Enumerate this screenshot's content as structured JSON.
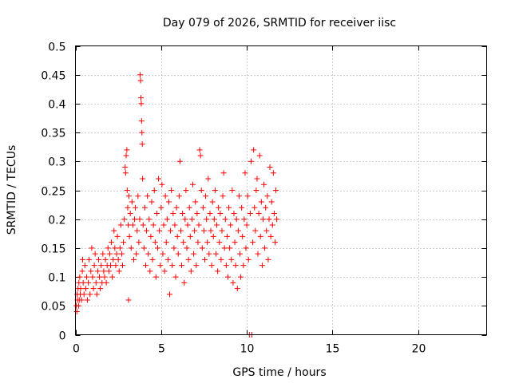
{
  "chart_data": {
    "type": "scatter",
    "title": "Day 079 of 2026, SRMTID for receiver iisc",
    "xlabel": "GPS time / hours",
    "ylabel": "SRMTID / TECUs",
    "xlim": [
      0,
      24
    ],
    "ylim": [
      0,
      0.5
    ],
    "xticks": [
      0,
      5,
      10,
      15,
      20
    ],
    "xtick_labels": [
      "0",
      "5",
      "10",
      "15",
      "20"
    ],
    "yticks": [
      0,
      0.05,
      0.1,
      0.15,
      0.2,
      0.25,
      0.3,
      0.35,
      0.4,
      0.45,
      0.5
    ],
    "ytick_labels": [
      "0",
      "0.05",
      "0.1",
      "0.15",
      "0.2",
      "0.25",
      "0.3",
      "0.35",
      "0.4",
      "0.45",
      "0.5"
    ],
    "grid": true,
    "marker": "plus",
    "series": [
      {
        "name": "SRMTID",
        "color": "#ff0000",
        "points": [
          [
            0.05,
            0.05
          ],
          [
            0.08,
            0.04
          ],
          [
            0.1,
            0.07
          ],
          [
            0.12,
            0.06
          ],
          [
            0.15,
            0.08
          ],
          [
            0.18,
            0.05
          ],
          [
            0.2,
            0.09
          ],
          [
            0.22,
            0.06
          ],
          [
            0.25,
            0.1
          ],
          [
            0.28,
            0.07
          ],
          [
            0.3,
            0.08
          ],
          [
            0.35,
            0.06
          ],
          [
            0.4,
            0.11
          ],
          [
            0.42,
            0.13
          ],
          [
            0.45,
            0.09
          ],
          [
            0.5,
            0.07
          ],
          [
            0.55,
            0.12
          ],
          [
            0.6,
            0.08
          ],
          [
            0.65,
            0.1
          ],
          [
            0.7,
            0.06
          ],
          [
            0.75,
            0.09
          ],
          [
            0.8,
            0.13
          ],
          [
            0.85,
            0.07
          ],
          [
            0.9,
            0.11
          ],
          [
            0.95,
            0.15
          ],
          [
            1.0,
            0.1
          ],
          [
            1.05,
            0.08
          ],
          [
            1.1,
            0.12
          ],
          [
            1.15,
            0.14
          ],
          [
            1.2,
            0.09
          ],
          [
            1.25,
            0.07
          ],
          [
            1.3,
            0.11
          ],
          [
            1.35,
            0.13
          ],
          [
            1.4,
            0.1
          ],
          [
            1.45,
            0.08
          ],
          [
            1.5,
            0.12
          ],
          [
            1.55,
            0.09
          ],
          [
            1.6,
            0.14
          ],
          [
            1.65,
            0.11
          ],
          [
            1.7,
            0.1
          ],
          [
            1.75,
            0.13
          ],
          [
            1.8,
            0.09
          ],
          [
            1.85,
            0.12
          ],
          [
            1.9,
            0.15
          ],
          [
            1.95,
            0.11
          ],
          [
            2.0,
            0.14
          ],
          [
            2.05,
            0.12
          ],
          [
            2.1,
            0.16
          ],
          [
            2.15,
            0.1
          ],
          [
            2.2,
            0.13
          ],
          [
            2.25,
            0.18
          ],
          [
            2.3,
            0.15
          ],
          [
            2.35,
            0.12
          ],
          [
            2.4,
            0.14
          ],
          [
            2.45,
            0.17
          ],
          [
            2.5,
            0.13
          ],
          [
            2.55,
            0.11
          ],
          [
            2.6,
            0.15
          ],
          [
            2.65,
            0.19
          ],
          [
            2.7,
            0.14
          ],
          [
            2.75,
            0.12
          ],
          [
            2.8,
            0.16
          ],
          [
            2.85,
            0.2
          ],
          [
            2.9,
            0.29
          ],
          [
            2.93,
            0.28
          ],
          [
            2.96,
            0.31
          ],
          [
            3.0,
            0.32
          ],
          [
            3.02,
            0.25
          ],
          [
            3.05,
            0.22
          ],
          [
            3.08,
            0.19
          ],
          [
            3.1,
            0.06
          ],
          [
            3.12,
            0.24
          ],
          [
            3.15,
            0.17
          ],
          [
            3.2,
            0.21
          ],
          [
            3.25,
            0.15
          ],
          [
            3.3,
            0.23
          ],
          [
            3.35,
            0.19
          ],
          [
            3.4,
            0.13
          ],
          [
            3.45,
            0.2
          ],
          [
            3.5,
            0.22
          ],
          [
            3.55,
            0.14
          ],
          [
            3.6,
            0.18
          ],
          [
            3.65,
            0.24
          ],
          [
            3.7,
            0.16
          ],
          [
            3.75,
            0.2
          ],
          [
            3.78,
            0.45
          ],
          [
            3.8,
            0.44
          ],
          [
            3.82,
            0.41
          ],
          [
            3.84,
            0.4
          ],
          [
            3.86,
            0.37
          ],
          [
            3.88,
            0.35
          ],
          [
            3.9,
            0.33
          ],
          [
            3.92,
            0.27
          ],
          [
            3.95,
            0.19
          ],
          [
            4.0,
            0.15
          ],
          [
            4.05,
            0.22
          ],
          [
            4.1,
            0.12
          ],
          [
            4.15,
            0.18
          ],
          [
            4.2,
            0.24
          ],
          [
            4.25,
            0.14
          ],
          [
            4.3,
            0.2
          ],
          [
            4.35,
            0.11
          ],
          [
            4.4,
            0.17
          ],
          [
            4.45,
            0.23
          ],
          [
            4.5,
            0.13
          ],
          [
            4.55,
            0.19
          ],
          [
            4.6,
            0.25
          ],
          [
            4.65,
            0.16
          ],
          [
            4.7,
            0.1
          ],
          [
            4.75,
            0.21
          ],
          [
            4.8,
            0.15
          ],
          [
            4.85,
            0.27
          ],
          [
            4.9,
            0.18
          ],
          [
            4.95,
            0.12
          ],
          [
            5.0,
            0.22
          ],
          [
            5.05,
            0.26
          ],
          [
            5.1,
            0.14
          ],
          [
            5.15,
            0.19
          ],
          [
            5.2,
            0.11
          ],
          [
            5.25,
            0.24
          ],
          [
            5.3,
            0.16
          ],
          [
            5.35,
            0.2
          ],
          [
            5.4,
            0.13
          ],
          [
            5.45,
            0.23
          ],
          [
            5.5,
            0.07
          ],
          [
            5.55,
            0.18
          ],
          [
            5.6,
            0.25
          ],
          [
            5.65,
            0.12
          ],
          [
            5.7,
            0.21
          ],
          [
            5.75,
            0.15
          ],
          [
            5.8,
            0.19
          ],
          [
            5.85,
            0.1
          ],
          [
            5.9,
            0.22
          ],
          [
            5.95,
            0.17
          ],
          [
            6.0,
            0.14
          ],
          [
            6.05,
            0.24
          ],
          [
            6.1,
            0.3
          ],
          [
            6.15,
            0.18
          ],
          [
            6.2,
            0.12
          ],
          [
            6.25,
            0.21
          ],
          [
            6.3,
            0.16
          ],
          [
            6.35,
            0.09
          ],
          [
            6.4,
            0.2
          ],
          [
            6.45,
            0.25
          ],
          [
            6.5,
            0.15
          ],
          [
            6.55,
            0.19
          ],
          [
            6.6,
            0.13
          ],
          [
            6.65,
            0.22
          ],
          [
            6.7,
            0.17
          ],
          [
            6.75,
            0.11
          ],
          [
            6.8,
            0.2
          ],
          [
            6.85,
            0.26
          ],
          [
            6.9,
            0.14
          ],
          [
            6.95,
            0.18
          ],
          [
            7.0,
            0.23
          ],
          [
            7.05,
            0.12
          ],
          [
            7.1,
            0.21
          ],
          [
            7.15,
            0.16
          ],
          [
            7.2,
            0.19
          ],
          [
            7.25,
            0.32
          ],
          [
            7.3,
            0.31
          ],
          [
            7.35,
            0.25
          ],
          [
            7.4,
            0.15
          ],
          [
            7.45,
            0.22
          ],
          [
            7.5,
            0.18
          ],
          [
            7.55,
            0.13
          ],
          [
            7.6,
            0.24
          ],
          [
            7.65,
            0.2
          ],
          [
            7.7,
            0.16
          ],
          [
            7.75,
            0.27
          ],
          [
            7.8,
            0.14
          ],
          [
            7.85,
            0.21
          ],
          [
            7.9,
            0.18
          ],
          [
            7.95,
            0.12
          ],
          [
            8.0,
            0.23
          ],
          [
            8.05,
            0.17
          ],
          [
            8.1,
            0.2
          ],
          [
            8.15,
            0.25
          ],
          [
            8.2,
            0.14
          ],
          [
            8.25,
            0.19
          ],
          [
            8.3,
            0.11
          ],
          [
            8.35,
            0.22
          ],
          [
            8.4,
            0.16
          ],
          [
            8.45,
            0.21
          ],
          [
            8.5,
            0.13
          ],
          [
            8.55,
            0.18
          ],
          [
            8.6,
            0.24
          ],
          [
            8.65,
            0.28
          ],
          [
            8.7,
            0.15
          ],
          [
            8.75,
            0.2
          ],
          [
            8.8,
            0.12
          ],
          [
            8.85,
            0.17
          ],
          [
            8.9,
            0.1
          ],
          [
            8.95,
            0.22
          ],
          [
            9.0,
            0.15
          ],
          [
            9.05,
            0.19
          ],
          [
            9.1,
            0.13
          ],
          [
            9.15,
            0.25
          ],
          [
            9.2,
            0.09
          ],
          [
            9.25,
            0.21
          ],
          [
            9.3,
            0.16
          ],
          [
            9.35,
            0.12
          ],
          [
            9.4,
            0.2
          ],
          [
            9.45,
            0.08
          ],
          [
            9.5,
            0.18
          ],
          [
            9.55,
            0.24
          ],
          [
            9.6,
            0.14
          ],
          [
            9.65,
            0.1
          ],
          [
            9.7,
            0.22
          ],
          [
            9.75,
            0.17
          ],
          [
            9.8,
            0.12
          ],
          [
            9.85,
            0.2
          ],
          [
            9.9,
            0.28
          ],
          [
            9.95,
            0.15
          ],
          [
            10.0,
            0.19
          ],
          [
            10.05,
            0.24
          ],
          [
            10.1,
            0.13
          ],
          [
            10.15,
            0.0
          ],
          [
            10.2,
            0.21
          ],
          [
            10.25,
            0.3
          ],
          [
            10.3,
            0.0
          ],
          [
            10.35,
            0.16
          ],
          [
            10.4,
            0.32
          ],
          [
            10.45,
            0.22
          ],
          [
            10.5,
            0.18
          ],
          [
            10.55,
            0.25
          ],
          [
            10.6,
            0.27
          ],
          [
            10.65,
            0.14
          ],
          [
            10.7,
            0.21
          ],
          [
            10.75,
            0.31
          ],
          [
            10.8,
            0.17
          ],
          [
            10.85,
            0.23
          ],
          [
            10.9,
            0.12
          ],
          [
            10.95,
            0.2
          ],
          [
            11.0,
            0.26
          ],
          [
            11.05,
            0.15
          ],
          [
            11.1,
            0.22
          ],
          [
            11.15,
            0.18
          ],
          [
            11.2,
            0.24
          ],
          [
            11.25,
            0.13
          ],
          [
            11.3,
            0.2
          ],
          [
            11.35,
            0.29
          ],
          [
            11.4,
            0.17
          ],
          [
            11.45,
            0.23
          ],
          [
            11.5,
            0.19
          ],
          [
            11.55,
            0.28
          ],
          [
            11.6,
            0.21
          ],
          [
            11.65,
            0.16
          ],
          [
            11.7,
            0.25
          ],
          [
            11.75,
            0.2
          ]
        ]
      }
    ]
  }
}
